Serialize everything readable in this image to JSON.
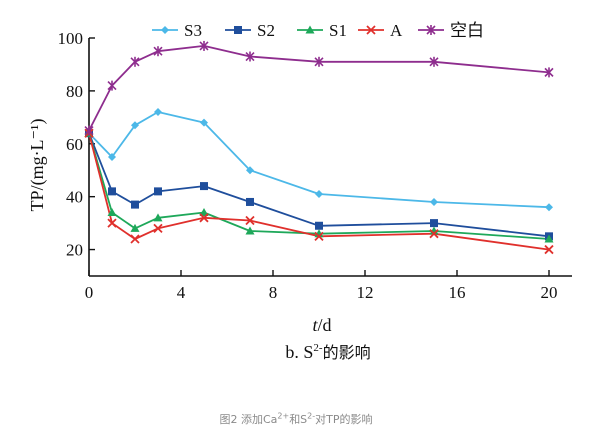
{
  "chart_data": {
    "type": "line",
    "title": "",
    "subtitle_prefix": "b. S",
    "subtitle_sup": "2-",
    "subtitle_suffix": "的影响",
    "xlabel_var": "t",
    "xlabel_unit": "/d",
    "ylabel": "TP/(mg·L⁻¹)",
    "xlim": [
      0,
      21
    ],
    "ylim": [
      10,
      100
    ],
    "x_ticks": [
      0,
      4,
      8,
      12,
      16,
      20
    ],
    "y_ticks": [
      20,
      40,
      60,
      80,
      100
    ],
    "x_tick_labels": [
      "0",
      "4",
      "8",
      "12",
      "16",
      "20"
    ],
    "y_tick_labels": [
      "20",
      "40",
      "60",
      "80",
      "100"
    ],
    "grid": false,
    "legend_position": "top",
    "series": [
      {
        "name": "S3",
        "color": "#4cb8e8",
        "marker": "diamond",
        "x": [
          0,
          1,
          2,
          3,
          5,
          7,
          10,
          15,
          20
        ],
        "y": [
          64,
          55,
          67,
          72,
          68,
          50,
          41,
          38,
          36
        ]
      },
      {
        "name": "S2",
        "color": "#1f4e9c",
        "marker": "square",
        "x": [
          0,
          1,
          2,
          3,
          5,
          7,
          10,
          15,
          20
        ],
        "y": [
          64,
          42,
          37,
          42,
          44,
          38,
          29,
          30,
          25
        ]
      },
      {
        "name": "S1",
        "color": "#1ea85a",
        "marker": "triangle",
        "x": [
          0,
          1,
          2,
          3,
          5,
          7,
          10,
          15,
          20
        ],
        "y": [
          64,
          34,
          28,
          32,
          34,
          27,
          26,
          27,
          24
        ]
      },
      {
        "name": "A",
        "color": "#e0302c",
        "marker": "x",
        "x": [
          0,
          1,
          2,
          3,
          5,
          7,
          10,
          15,
          20
        ],
        "y": [
          64,
          30,
          24,
          28,
          32,
          31,
          25,
          26,
          20
        ]
      },
      {
        "name": "空白",
        "color": "#8e2d8e",
        "marker": "asterisk",
        "x": [
          0,
          1,
          2,
          3,
          5,
          7,
          10,
          15,
          20
        ],
        "y": [
          65,
          82,
          91,
          95,
          97,
          93,
          91,
          91,
          87
        ]
      }
    ]
  },
  "caption": {
    "prefix": "图2 添加Ca",
    "sup1": "2+",
    "middle": "和S",
    "sup2": "2-",
    "suffix": "对TP的影响"
  }
}
